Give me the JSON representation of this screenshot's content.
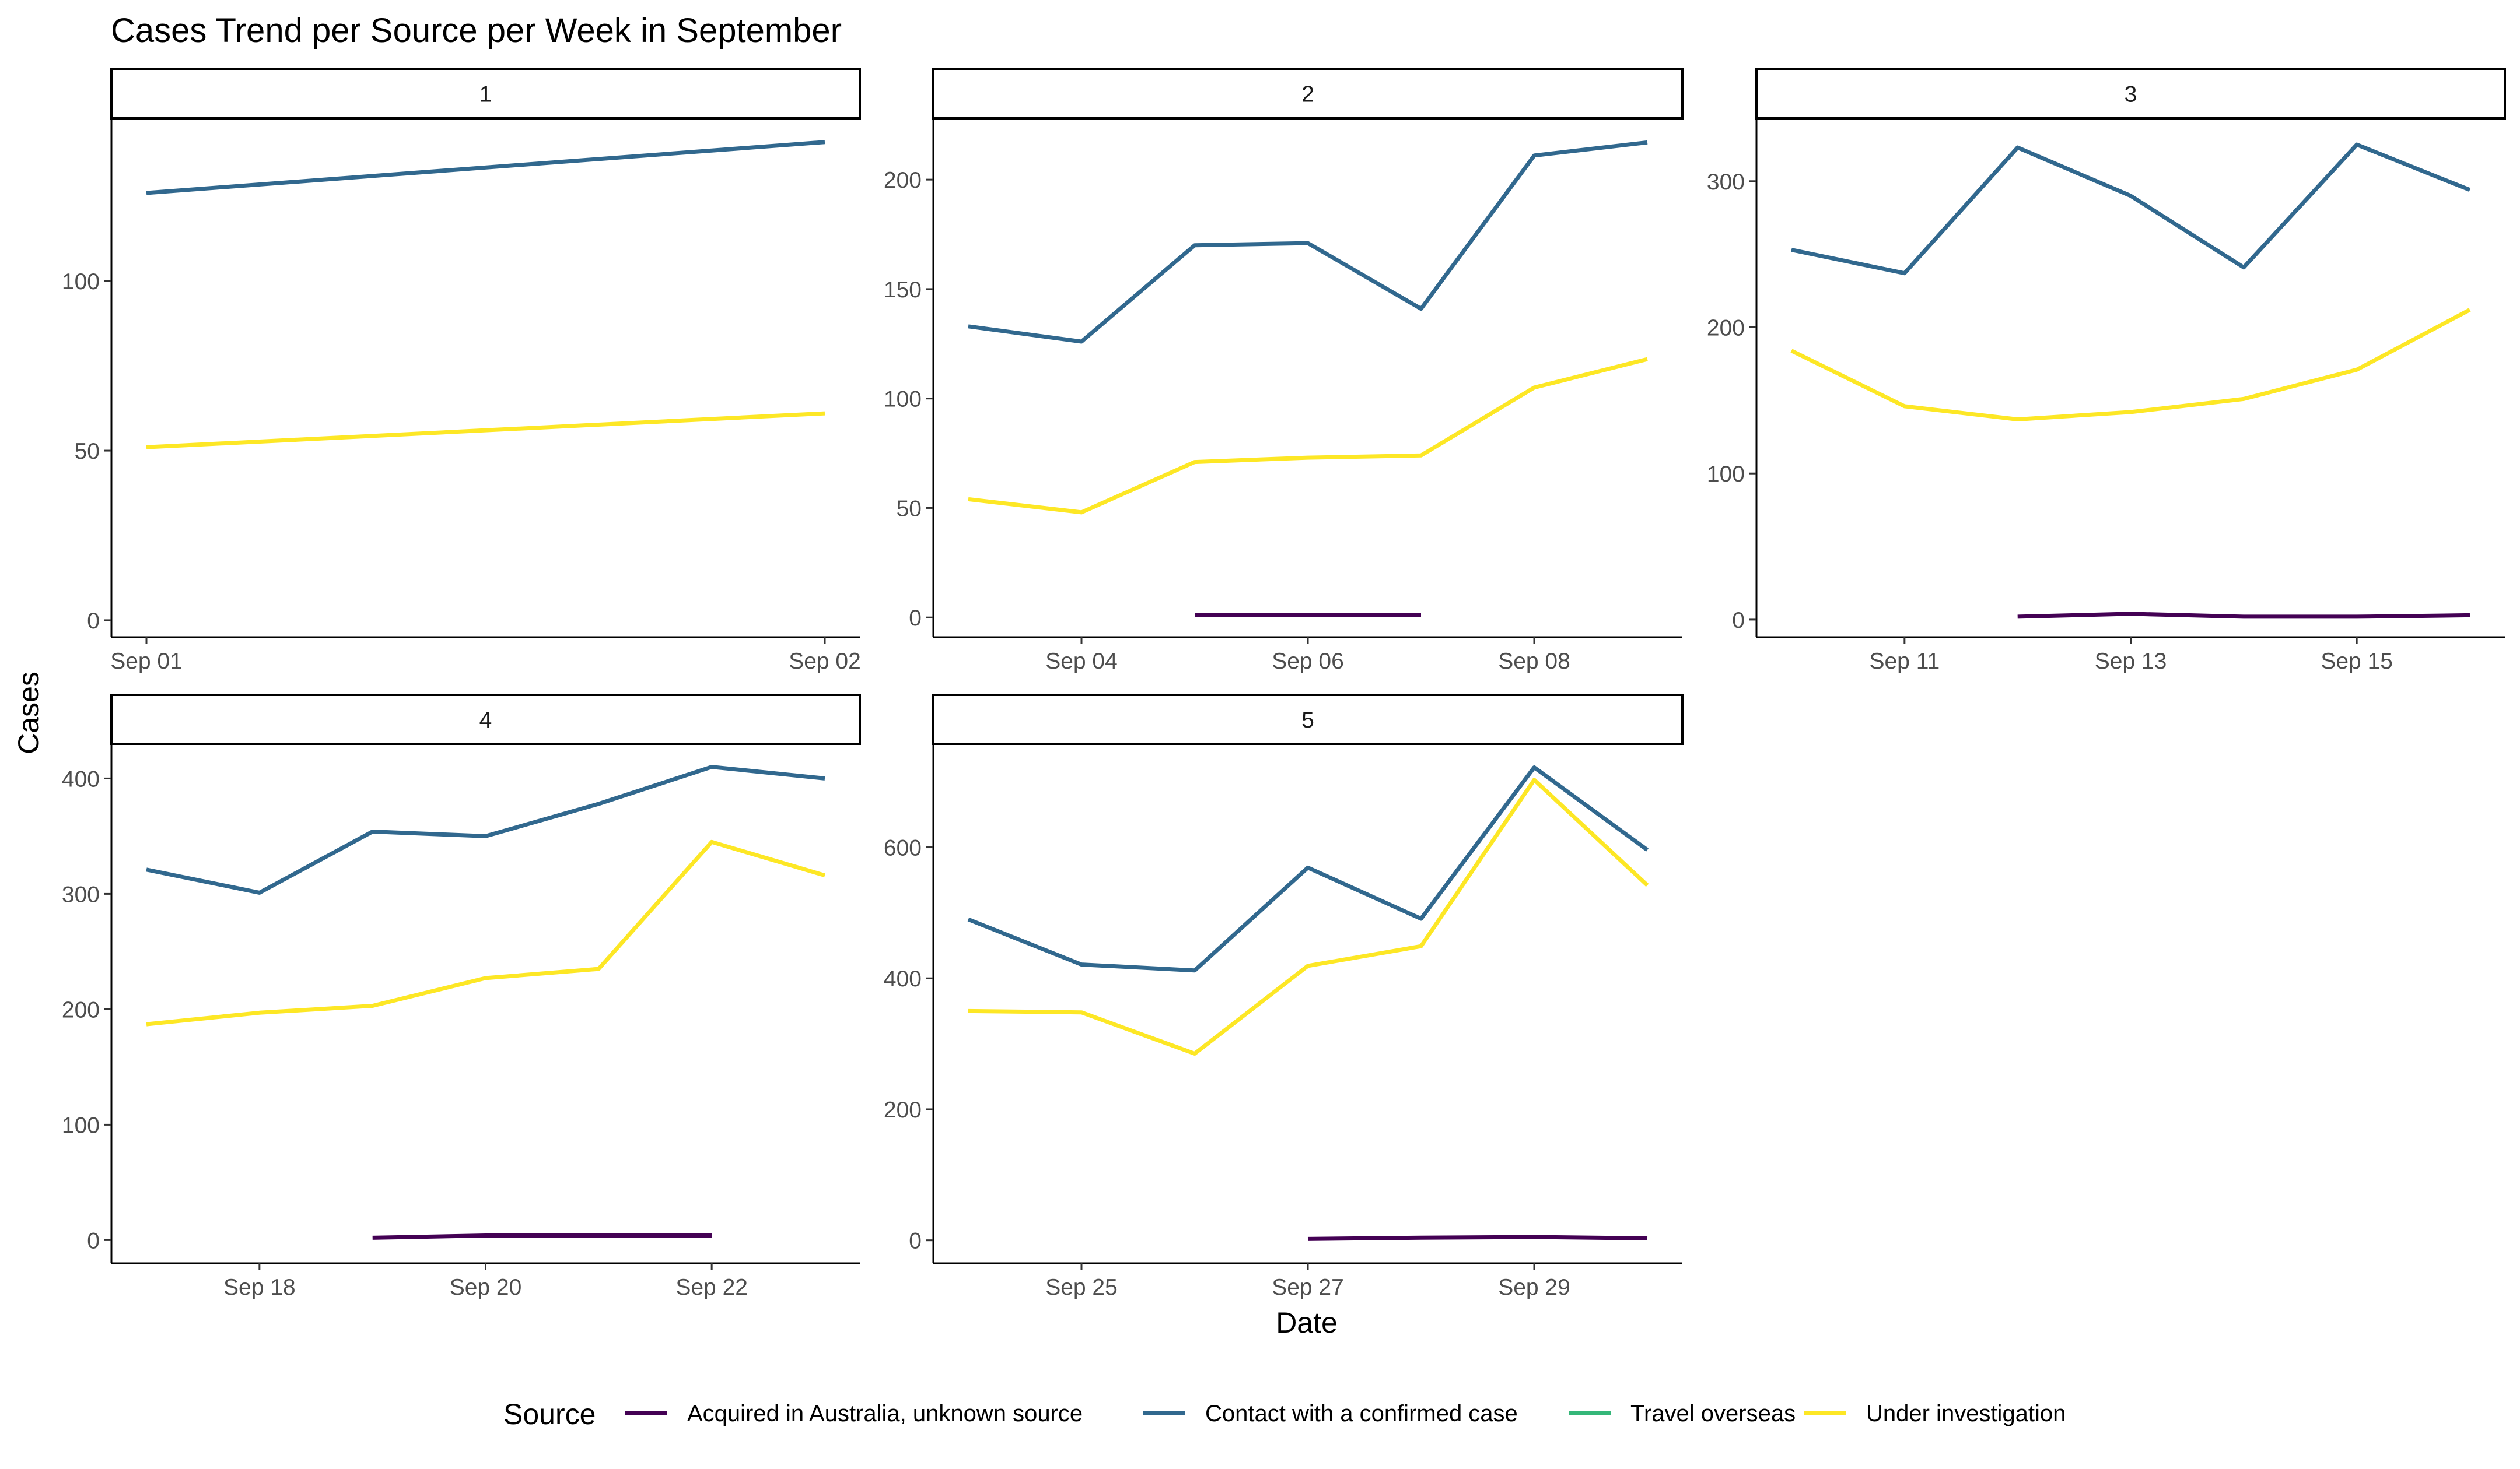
{
  "chart_data": {
    "type": "line",
    "title": "Cases Trend per Source per Week in September",
    "xlabel": "Date",
    "ylabel": "Cases",
    "facet_layout": "3 columns, 2 rows, independent y-axis scales",
    "legend": {
      "title": "Source",
      "position": "bottom",
      "entries": [
        {
          "name": "Acquired in Australia, unknown source",
          "color": "#440154"
        },
        {
          "name": "Contact with a confirmed case",
          "color": "#31688E"
        },
        {
          "name": "Travel overseas",
          "color": "#35B779"
        },
        {
          "name": "Under investigation",
          "color": "#FDE725"
        }
      ]
    },
    "grid": false,
    "panels": [
      {
        "label": "1",
        "x": [
          "2020-09-01",
          "2020-09-02"
        ],
        "xticks": [
          {
            "date": "2020-09-01",
            "label": "Sep 01"
          },
          {
            "date": "2020-09-02",
            "label": "Sep 02"
          }
        ],
        "ylim": [
          -5,
          148
        ],
        "yticks": [
          0,
          50,
          100
        ],
        "series": [
          {
            "name": "Contact with a confirmed case",
            "x": [
              "2020-09-01",
              "2020-09-02"
            ],
            "values": [
              126,
              141
            ]
          },
          {
            "name": "Under investigation",
            "x": [
              "2020-09-01",
              "2020-09-02"
            ],
            "values": [
              51,
              61
            ]
          }
        ]
      },
      {
        "label": "2",
        "x": [
          "2020-09-03",
          "2020-09-09"
        ],
        "xticks": [
          {
            "date": "2020-09-04",
            "label": "Sep 04"
          },
          {
            "date": "2020-09-06",
            "label": "Sep 06"
          },
          {
            "date": "2020-09-08",
            "label": "Sep 08"
          }
        ],
        "ylim": [
          -9,
          228
        ],
        "yticks": [
          0,
          50,
          100,
          150,
          200
        ],
        "series": [
          {
            "name": "Contact with a confirmed case",
            "x": [
              "2020-09-03",
              "2020-09-04",
              "2020-09-05",
              "2020-09-06",
              "2020-09-07",
              "2020-09-08",
              "2020-09-09"
            ],
            "values": [
              133,
              126,
              170,
              171,
              141,
              211,
              217
            ]
          },
          {
            "name": "Under investigation",
            "x": [
              "2020-09-03",
              "2020-09-04",
              "2020-09-05",
              "2020-09-06",
              "2020-09-07",
              "2020-09-08",
              "2020-09-09"
            ],
            "values": [
              54,
              48,
              71,
              73,
              74,
              105,
              118
            ]
          },
          {
            "name": "Acquired in Australia, unknown source",
            "x": [
              "2020-09-05",
              "2020-09-06",
              "2020-09-07"
            ],
            "values": [
              1,
              1,
              1
            ]
          }
        ]
      },
      {
        "label": "3",
        "x": [
          "2020-09-10",
          "2020-09-16"
        ],
        "xticks": [
          {
            "date": "2020-09-11",
            "label": "Sep 11"
          },
          {
            "date": "2020-09-13",
            "label": "Sep 13"
          },
          {
            "date": "2020-09-15",
            "label": "Sep 15"
          }
        ],
        "ylim": [
          -12,
          343
        ],
        "yticks": [
          0,
          100,
          200,
          300
        ],
        "series": [
          {
            "name": "Contact with a confirmed case",
            "x": [
              "2020-09-10",
              "2020-09-11",
              "2020-09-12",
              "2020-09-13",
              "2020-09-14",
              "2020-09-15",
              "2020-09-16"
            ],
            "values": [
              253,
              237,
              323,
              290,
              241,
              325,
              294
            ]
          },
          {
            "name": "Under investigation",
            "x": [
              "2020-09-10",
              "2020-09-11",
              "2020-09-12",
              "2020-09-13",
              "2020-09-14",
              "2020-09-15",
              "2020-09-16"
            ],
            "values": [
              184,
              146,
              137,
              142,
              151,
              171,
              212
            ]
          },
          {
            "name": "Acquired in Australia, unknown source",
            "x": [
              "2020-09-12",
              "2020-09-13",
              "2020-09-14",
              "2020-09-15",
              "2020-09-16"
            ],
            "values": [
              2,
              4,
              2,
              2,
              3
            ]
          }
        ]
      },
      {
        "label": "4",
        "x": [
          "2020-09-17",
          "2020-09-23"
        ],
        "xticks": [
          {
            "date": "2020-09-18",
            "label": "Sep 18"
          },
          {
            "date": "2020-09-20",
            "label": "Sep 20"
          },
          {
            "date": "2020-09-22",
            "label": "Sep 22"
          }
        ],
        "ylim": [
          -20,
          430
        ],
        "yticks": [
          0,
          100,
          200,
          300,
          400
        ],
        "series": [
          {
            "name": "Contact with a confirmed case",
            "x": [
              "2020-09-17",
              "2020-09-18",
              "2020-09-19",
              "2020-09-20",
              "2020-09-21",
              "2020-09-22",
              "2020-09-23"
            ],
            "values": [
              321,
              301,
              354,
              350,
              378,
              410,
              400
            ]
          },
          {
            "name": "Under investigation",
            "x": [
              "2020-09-17",
              "2020-09-18",
              "2020-09-19",
              "2020-09-20",
              "2020-09-21",
              "2020-09-22",
              "2020-09-23"
            ],
            "values": [
              187,
              197,
              203,
              227,
              235,
              345,
              316
            ]
          },
          {
            "name": "Acquired in Australia, unknown source",
            "x": [
              "2020-09-19",
              "2020-09-20",
              "2020-09-21",
              "2020-09-22"
            ],
            "values": [
              2,
              4,
              4,
              4
            ]
          }
        ]
      },
      {
        "label": "5",
        "x": [
          "2020-09-24",
          "2020-09-30"
        ],
        "xticks": [
          {
            "date": "2020-09-25",
            "label": "Sep 25"
          },
          {
            "date": "2020-09-27",
            "label": "Sep 27"
          },
          {
            "date": "2020-09-29",
            "label": "Sep 29"
          }
        ],
        "ylim": [
          -35,
          758
        ],
        "yticks": [
          0,
          200,
          400,
          600
        ],
        "series": [
          {
            "name": "Contact with a confirmed case",
            "x": [
              "2020-09-24",
              "2020-09-25",
              "2020-09-26",
              "2020-09-27",
              "2020-09-28",
              "2020-09-29",
              "2020-09-30"
            ],
            "values": [
              490,
              421,
              412,
              569,
              491,
              722,
              596
            ]
          },
          {
            "name": "Under investigation",
            "x": [
              "2020-09-24",
              "2020-09-25",
              "2020-09-26",
              "2020-09-27",
              "2020-09-28",
              "2020-09-29",
              "2020-09-30"
            ],
            "values": [
              350,
              348,
              285,
              419,
              449,
              703,
              542
            ]
          },
          {
            "name": "Acquired in Australia, unknown source",
            "x": [
              "2020-09-27",
              "2020-09-28",
              "2020-09-29",
              "2020-09-30"
            ],
            "values": [
              2,
              4,
              5,
              3
            ]
          }
        ]
      }
    ]
  }
}
